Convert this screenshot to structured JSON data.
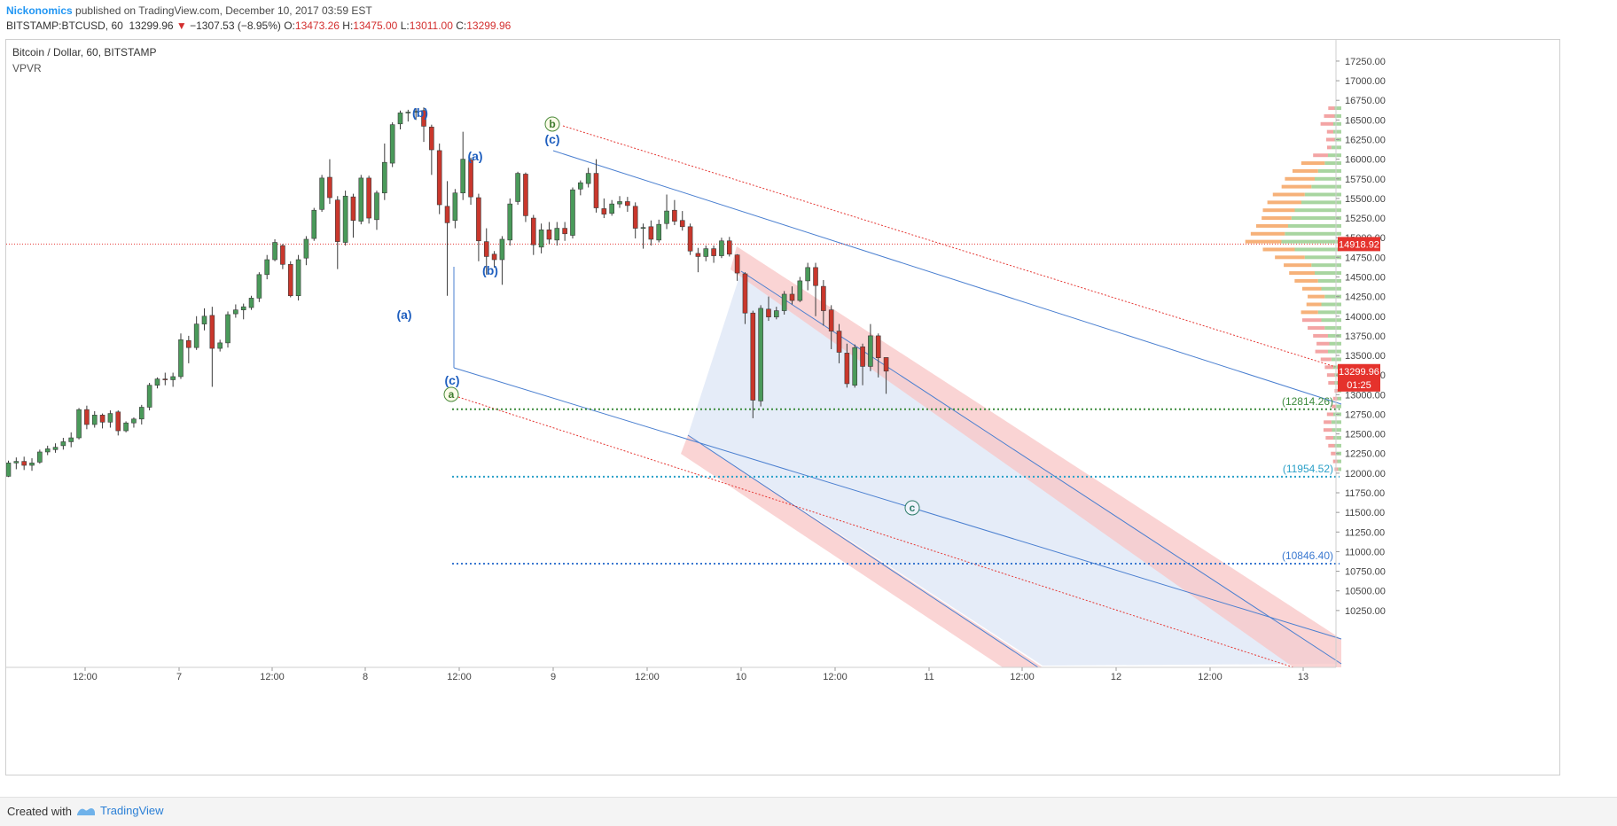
{
  "header": {
    "author": "Nickonomics",
    "published_text": "published on TradingView.com, December 10, 2017 03:59 EST",
    "symbol": "BITSTAMP:BTCUSD, 60",
    "last": "13299.96",
    "change": "−1307.53 (−8.95%)",
    "o_label": "O:",
    "o_value": "13473.26",
    "h_label": "H:",
    "h_value": "13475.00",
    "l_label": "L:",
    "l_value": "13011.00",
    "c_label": "C:",
    "c_value": "13299.96"
  },
  "legend": {
    "title": "Bitcoin / Dollar, 60, BITSTAMP",
    "indicator": "VPVR"
  },
  "footer": {
    "created_with": "Created with",
    "brand": "TradingView"
  },
  "colors": {
    "up": "#4a9a5a",
    "down": "#c9372c",
    "wave_label": "#1f5fbf",
    "channel_blue": "#4a7fd0",
    "channel_red": "#e53935",
    "green_level": "#3d8b3d",
    "cyan_level": "#2aa0c8",
    "blue_level": "#3a78d0",
    "price_tag_red": "#d32f2f"
  },
  "chart_data": {
    "type": "candlestick",
    "title": "Bitcoin / Dollar, 60, BITSTAMP",
    "y_range": [
      10000,
      17400
    ],
    "y_ticks": [
      "10250.00",
      "10500.00",
      "10750.00",
      "11000.00",
      "11250.00",
      "11500.00",
      "11750.00",
      "12000.00",
      "12250.00",
      "12500.00",
      "12750.00",
      "13000.00",
      "13250.00",
      "13500.00",
      "13750.00",
      "14000.00",
      "14250.00",
      "14500.00",
      "14750.00",
      "15000.00",
      "15250.00",
      "15500.00",
      "15750.00",
      "16000.00",
      "16250.00",
      "16500.00",
      "16750.00",
      "17000.00",
      "17250.00"
    ],
    "x_ticks": [
      "12:00",
      "7",
      "12:00",
      "8",
      "12:00",
      "9",
      "12:00",
      "10",
      "12:00",
      "11",
      "12:00",
      "12",
      "12:00",
      "13"
    ],
    "candles": [
      [
        11960,
        12130,
        11950,
        12160
      ],
      [
        12130,
        12150,
        12050,
        12200
      ],
      [
        12150,
        12100,
        12040,
        12210
      ],
      [
        12100,
        12130,
        12030,
        12190
      ],
      [
        12140,
        12270,
        12120,
        12300
      ],
      [
        12270,
        12310,
        12230,
        12350
      ],
      [
        12300,
        12330,
        12260,
        12380
      ],
      [
        12350,
        12400,
        12300,
        12450
      ],
      [
        12400,
        12450,
        12330,
        12520
      ],
      [
        12450,
        12810,
        12430,
        12830
      ],
      [
        12810,
        12620,
        12560,
        12860
      ],
      [
        12620,
        12740,
        12580,
        12790
      ],
      [
        12740,
        12650,
        12570,
        12760
      ],
      [
        12650,
        12760,
        12580,
        12800
      ],
      [
        12780,
        12540,
        12480,
        12800
      ],
      [
        12540,
        12640,
        12520,
        12660
      ],
      [
        12640,
        12690,
        12580,
        12710
      ],
      [
        12690,
        12840,
        12620,
        12870
      ],
      [
        12840,
        13120,
        12800,
        13150
      ],
      [
        13120,
        13200,
        13080,
        13220
      ],
      [
        13200,
        13190,
        13120,
        13280
      ],
      [
        13190,
        13230,
        13100,
        13280
      ],
      [
        13230,
        13700,
        13200,
        13780
      ],
      [
        13690,
        13600,
        13400,
        13750
      ],
      [
        13600,
        13900,
        13570,
        14000
      ],
      [
        13900,
        14000,
        13820,
        14100
      ],
      [
        14010,
        13590,
        13100,
        14120
      ],
      [
        13590,
        13660,
        13550,
        13700
      ],
      [
        13660,
        14020,
        13600,
        14060
      ],
      [
        14030,
        14080,
        13980,
        14150
      ],
      [
        14080,
        14120,
        13960,
        14160
      ],
      [
        14110,
        14230,
        14080,
        14260
      ],
      [
        14230,
        14530,
        14180,
        14560
      ],
      [
        14530,
        14720,
        14470,
        14780
      ],
      [
        14720,
        14940,
        14700,
        14980
      ],
      [
        14900,
        14660,
        14600,
        14920
      ],
      [
        14660,
        14260,
        14240,
        14700
      ],
      [
        14260,
        14720,
        14200,
        14780
      ],
      [
        14740,
        14980,
        14650,
        15020
      ],
      [
        14990,
        15350,
        14960,
        15380
      ],
      [
        15360,
        15760,
        15330,
        15800
      ],
      [
        15770,
        15510,
        15430,
        16000
      ],
      [
        15480,
        14950,
        14600,
        15530
      ],
      [
        14940,
        15530,
        14900,
        15600
      ],
      [
        15520,
        15220,
        15000,
        15560
      ],
      [
        15210,
        15760,
        15170,
        15800
      ],
      [
        15760,
        15250,
        15180,
        15790
      ],
      [
        15230,
        15570,
        15100,
        15600
      ],
      [
        15570,
        15960,
        15480,
        16200
      ],
      [
        15950,
        16440,
        15900,
        16470
      ],
      [
        16450,
        16590,
        16380,
        16620
      ],
      [
        16590,
        16600,
        16480,
        16630
      ],
      [
        16600,
        16610,
        16500,
        16650
      ],
      [
        16620,
        16420,
        16220,
        16660
      ],
      [
        16410,
        16120,
        15800,
        16440
      ],
      [
        16110,
        15420,
        15300,
        16200
      ],
      [
        15400,
        15190,
        14260,
        15720
      ],
      [
        15220,
        15570,
        15120,
        15620
      ],
      [
        15570,
        16000,
        15480,
        16350
      ],
      [
        15990,
        15520,
        15420,
        16020
      ],
      [
        15510,
        14960,
        14700,
        15560
      ],
      [
        14950,
        14760,
        14530,
        15120
      ],
      [
        14790,
        14720,
        14620,
        14830
      ],
      [
        14720,
        14980,
        14400,
        15020
      ],
      [
        14970,
        15430,
        14900,
        15500
      ],
      [
        15460,
        15820,
        15420,
        15840
      ],
      [
        15810,
        15280,
        15200,
        15830
      ],
      [
        15250,
        14910,
        14780,
        15290
      ],
      [
        14880,
        15100,
        14800,
        15180
      ],
      [
        15100,
        14980,
        14920,
        15200
      ],
      [
        14970,
        15120,
        14900,
        15200
      ],
      [
        15120,
        15050,
        14960,
        15200
      ],
      [
        15030,
        15610,
        14990,
        15640
      ],
      [
        15620,
        15700,
        15540,
        15730
      ],
      [
        15690,
        15820,
        15640,
        15890
      ],
      [
        15820,
        15380,
        15320,
        16000
      ],
      [
        15370,
        15300,
        15250,
        15500
      ],
      [
        15310,
        15430,
        15280,
        15480
      ],
      [
        15430,
        15460,
        15380,
        15530
      ],
      [
        15460,
        15410,
        15330,
        15520
      ],
      [
        15400,
        15120,
        14990,
        15450
      ],
      [
        15120,
        15130,
        14860,
        15180
      ],
      [
        15140,
        14980,
        14900,
        15220
      ],
      [
        14970,
        15170,
        14940,
        15230
      ],
      [
        15180,
        15340,
        15110,
        15550
      ],
      [
        15350,
        15210,
        15160,
        15480
      ],
      [
        15220,
        15140,
        15090,
        15340
      ],
      [
        15140,
        14830,
        14780,
        15180
      ],
      [
        14800,
        14760,
        14560,
        14870
      ],
      [
        14760,
        14860,
        14700,
        14900
      ],
      [
        14860,
        14770,
        14680,
        14900
      ],
      [
        14770,
        14960,
        14740,
        15000
      ],
      [
        14960,
        14790,
        14760,
        15010
      ],
      [
        14780,
        14550,
        14450,
        14790
      ],
      [
        14540,
        14040,
        13900,
        14560
      ],
      [
        14040,
        12930,
        12700,
        14070
      ],
      [
        12920,
        14100,
        12850,
        14140
      ],
      [
        14090,
        13990,
        13940,
        14250
      ],
      [
        13990,
        14070,
        13960,
        14120
      ],
      [
        14070,
        14280,
        14020,
        14320
      ],
      [
        14280,
        14200,
        14150,
        14380
      ],
      [
        14200,
        14450,
        14180,
        14500
      ],
      [
        14450,
        14620,
        14330,
        14680
      ],
      [
        14620,
        14390,
        14000,
        14680
      ],
      [
        14380,
        14070,
        13880,
        14460
      ],
      [
        14080,
        13810,
        13580,
        14140
      ],
      [
        13810,
        13540,
        13400,
        13900
      ],
      [
        13530,
        13140,
        13090,
        13650
      ],
      [
        13120,
        13600,
        13090,
        13640
      ],
      [
        13610,
        13360,
        13120,
        13650
      ],
      [
        13360,
        13750,
        13300,
        13900
      ],
      [
        13750,
        13470,
        13220,
        13780
      ],
      [
        13473.26,
        13299.96,
        13011.0,
        13475.0
      ]
    ],
    "horizontal_levels": [
      {
        "label": "(12814.26)",
        "value": 12814.26
      },
      {
        "label": "(11954.52)",
        "value": 11954.52
      },
      {
        "label": "(10846.40)",
        "value": 10846.4
      }
    ],
    "price_tags": [
      {
        "label": "14918.92",
        "value": 14918.92
      },
      {
        "label": "13299.96",
        "value": 13299.96
      },
      {
        "label": "01:25",
        "value": 13130
      }
    ],
    "wave_labels_blue": [
      "(b)",
      "(a)",
      "(a)",
      "(b)",
      "(c)",
      "(c)"
    ],
    "wave_labels_circled": [
      "b",
      "a",
      "c"
    ],
    "volume_profile": [
      [
        16650,
        0.1,
        0.15
      ],
      [
        16550,
        0.1,
        0.25
      ],
      [
        16450,
        0.12,
        0.3
      ],
      [
        16350,
        0.12,
        0.15
      ],
      [
        16250,
        0.1,
        0.2
      ],
      [
        16150,
        0.15,
        0.1
      ],
      [
        16050,
        0.2,
        0.35
      ],
      [
        15950,
        0.25,
        0.55
      ],
      [
        15850,
        0.35,
        0.6
      ],
      [
        15750,
        0.4,
        0.7
      ],
      [
        15650,
        0.45,
        0.7
      ],
      [
        15550,
        0.55,
        0.75
      ],
      [
        15450,
        0.6,
        0.8
      ],
      [
        15350,
        0.7,
        0.75
      ],
      [
        15250,
        0.75,
        0.7
      ],
      [
        15150,
        0.8,
        0.75
      ],
      [
        15050,
        0.85,
        0.8
      ],
      [
        14950,
        0.9,
        0.85
      ],
      [
        14850,
        0.7,
        0.75
      ],
      [
        14750,
        0.55,
        0.7
      ],
      [
        14650,
        0.45,
        0.65
      ],
      [
        14550,
        0.4,
        0.6
      ],
      [
        14450,
        0.35,
        0.55
      ],
      [
        14350,
        0.3,
        0.45
      ],
      [
        14250,
        0.25,
        0.4
      ],
      [
        14150,
        0.3,
        0.35
      ],
      [
        14050,
        0.35,
        0.4
      ],
      [
        13950,
        0.3,
        0.45
      ],
      [
        13850,
        0.25,
        0.4
      ],
      [
        13750,
        0.2,
        0.35
      ],
      [
        13650,
        0.18,
        0.3
      ],
      [
        13550,
        0.2,
        0.3
      ],
      [
        13450,
        0.15,
        0.25
      ],
      [
        13350,
        0.12,
        0.2
      ],
      [
        13250,
        0.1,
        0.18
      ],
      [
        13150,
        0.1,
        0.15
      ],
      [
        13050,
        0.05,
        0.08
      ],
      [
        12950,
        0.06,
        0.1
      ],
      [
        12850,
        0.08,
        0.1
      ],
      [
        12750,
        0.12,
        0.15
      ],
      [
        12650,
        0.15,
        0.18
      ],
      [
        12550,
        0.14,
        0.2
      ],
      [
        12450,
        0.12,
        0.18
      ],
      [
        12350,
        0.1,
        0.15
      ],
      [
        12250,
        0.08,
        0.12
      ],
      [
        12150,
        0.06,
        0.1
      ],
      [
        12050,
        0.05,
        0.08
      ]
    ]
  }
}
